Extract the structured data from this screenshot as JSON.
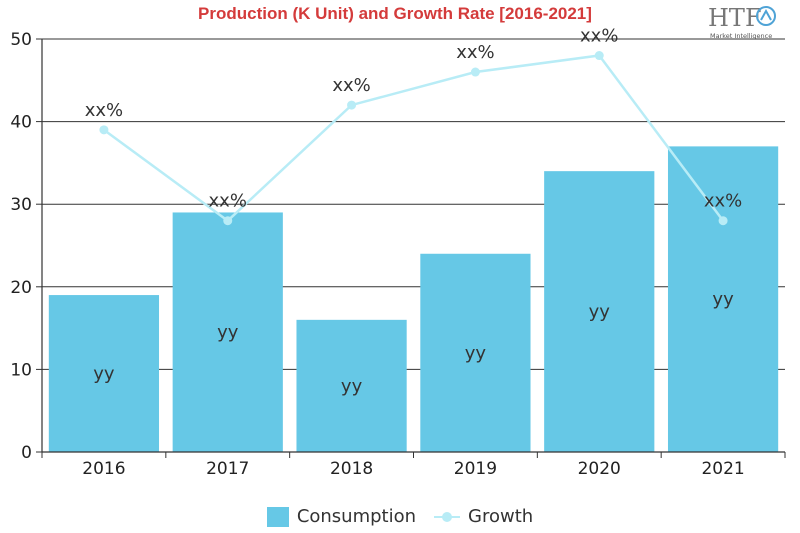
{
  "chart_data": {
    "type": "bar",
    "title": "Production (K Unit) and Growth Rate [2016-2021]",
    "logo_text": "HTF",
    "logo_subtext": "Market Intelligence",
    "categories": [
      "2016",
      "2017",
      "2018",
      "2019",
      "2020",
      "2021"
    ],
    "ylim": [
      0,
      50
    ],
    "yticks": [
      0,
      10,
      20,
      30,
      40,
      50
    ],
    "grid": true,
    "legend_position": "bottom",
    "series": [
      {
        "name": "Consumption",
        "type": "bar",
        "color": "#66c8e6",
        "values": [
          19,
          29,
          16,
          24,
          34,
          37
        ],
        "labels": [
          "yy",
          "yy",
          "yy",
          "yy",
          "yy",
          "yy"
        ]
      },
      {
        "name": "Growth",
        "type": "line",
        "color": "#b8ecf6",
        "values": [
          39,
          28,
          42,
          46,
          48,
          28
        ],
        "labels": [
          "xx%",
          "xx%",
          "xx%",
          "xx%",
          "xx%",
          "xx%"
        ]
      }
    ]
  }
}
